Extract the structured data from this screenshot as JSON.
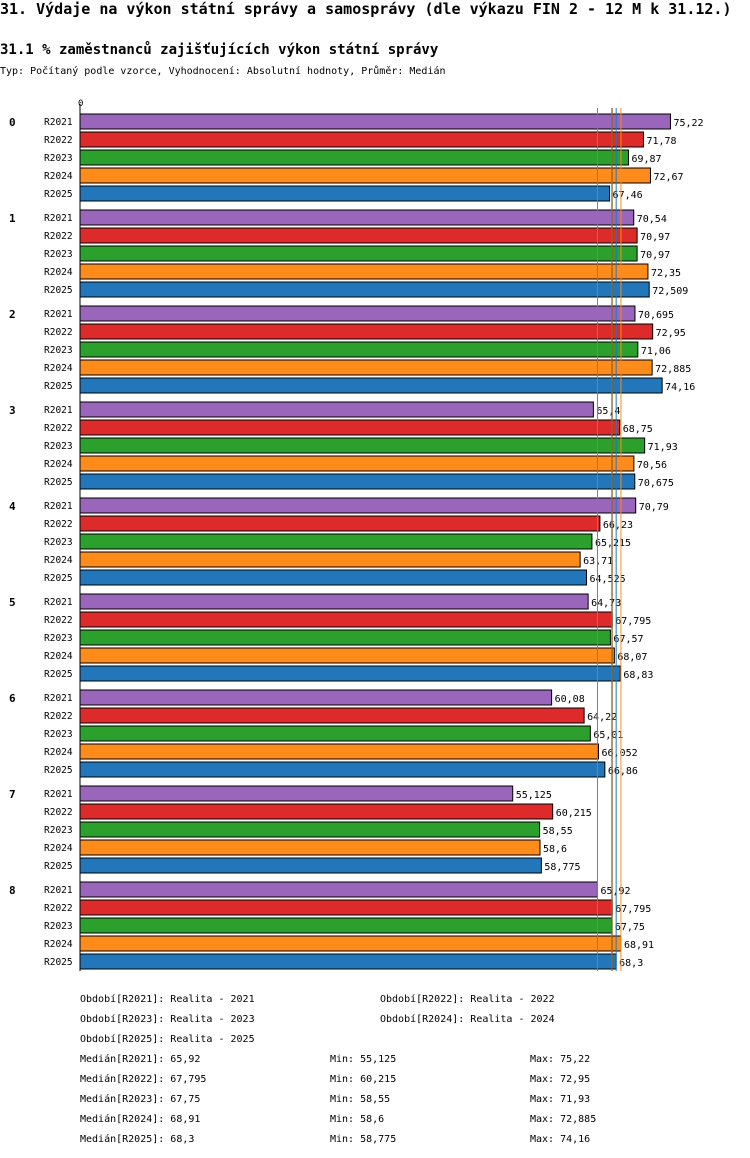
{
  "header": {
    "title": "31. Výdaje na výkon státní správy a samosprávy (dle výkazu FIN 2 - 12 M k 31.12.)",
    "subtitle": "31.1 % zaměstnanců zajišťujících výkon státní správy",
    "type_line": "Typ: Počítaný podle vzorce, Vyhodnocení: Absolutní hodnoty, Průměr: Medián"
  },
  "chart_data": {
    "type": "bar",
    "orientation": "horizontal",
    "title": "31.1 % zaměstnanců zajišťujících výkon státní správy",
    "axis_zero_label": "0",
    "xlim": [
      0,
      80
    ],
    "categories": [
      "0",
      "1",
      "2",
      "3",
      "4",
      "5",
      "6",
      "7",
      "8"
    ],
    "series": [
      {
        "name": "R2021",
        "color": "#9966bb",
        "values": [
          75.22,
          70.54,
          70.695,
          65.4,
          70.79,
          64.73,
          60.08,
          55.125,
          65.92
        ],
        "labels": [
          "75,22",
          "70,54",
          "70,695",
          "65,4",
          "70,79",
          "64,73",
          "60,08",
          "55,125",
          "65,92"
        ]
      },
      {
        "name": "R2022",
        "color": "#dd2a2a",
        "values": [
          71.78,
          70.97,
          72.95,
          68.75,
          66.23,
          67.795,
          64.22,
          60.215,
          67.795
        ],
        "labels": [
          "71,78",
          "70,97",
          "72,95",
          "68,75",
          "66,23",
          "67,795",
          "64,22",
          "60,215",
          "67,795"
        ]
      },
      {
        "name": "R2023",
        "color": "#2ca02c",
        "values": [
          69.87,
          70.97,
          71.06,
          71.93,
          65.215,
          67.57,
          65.01,
          58.55,
          67.75
        ],
        "labels": [
          "69,87",
          "70,97",
          "71,06",
          "71,93",
          "65,215",
          "67,57",
          "65,01",
          "58,55",
          "67,75"
        ]
      },
      {
        "name": "R2024",
        "color": "#ff8c1a",
        "values": [
          72.67,
          72.35,
          72.885,
          70.56,
          63.71,
          68.07,
          66.052,
          58.6,
          68.91
        ],
        "labels": [
          "72,67",
          "72,35",
          "72,885",
          "70,56",
          "63,71",
          "68,07",
          "66,052",
          "58,6",
          "68,91"
        ]
      },
      {
        "name": "R2025",
        "color": "#2277bb",
        "values": [
          67.46,
          72.509,
          74.16,
          70.675,
          64.525,
          68.83,
          66.86,
          58.775,
          68.3
        ],
        "labels": [
          "67,46",
          "72,509",
          "74,16",
          "70,675",
          "64,525",
          "68,83",
          "66,86",
          "58,775",
          "68,3"
        ]
      }
    ],
    "median_lines": [
      {
        "series": "R2021",
        "value": 65.92
      },
      {
        "series": "R2022",
        "value": 67.795
      },
      {
        "series": "R2023",
        "value": 67.75
      },
      {
        "series": "R2024",
        "value": 68.91
      },
      {
        "series": "R2025",
        "value": 68.3
      }
    ]
  },
  "legend": {
    "periods": [
      "Období[R2021]: Realita - 2021",
      "Období[R2022]: Realita - 2022",
      "Období[R2023]: Realita - 2023",
      "Období[R2024]: Realita - 2024",
      "Období[R2025]: Realita - 2025"
    ],
    "stats": [
      {
        "median": "Medián[R2021]: 65,92",
        "min": "Min: 55,125",
        "max": "Max: 75,22"
      },
      {
        "median": "Medián[R2022]: 67,795",
        "min": "Min: 60,215",
        "max": "Max: 72,95"
      },
      {
        "median": "Medián[R2023]: 67,75",
        "min": "Min: 58,55",
        "max": "Max: 71,93"
      },
      {
        "median": "Medián[R2024]: 68,91",
        "min": "Min: 58,6",
        "max": "Max: 72,885"
      },
      {
        "median": "Medián[R2025]: 68,3",
        "min": "Min: 58,775",
        "max": "Max: 74,16"
      }
    ]
  }
}
